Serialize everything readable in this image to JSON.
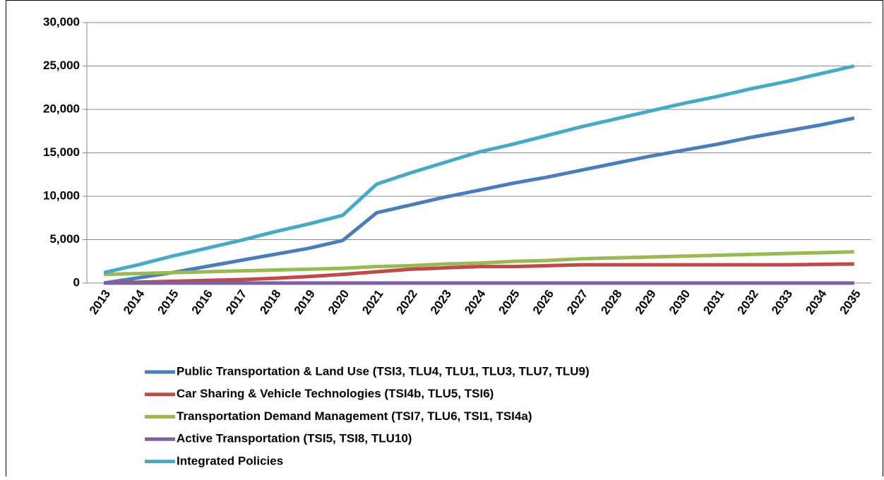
{
  "chart_data": {
    "type": "line",
    "categories": [
      "2013",
      "2014",
      "2015",
      "2016",
      "2017",
      "2018",
      "2019",
      "2020",
      "2021",
      "2022",
      "2023",
      "2024",
      "2025",
      "2026",
      "2027",
      "2028",
      "2029",
      "2030",
      "2031",
      "2032",
      "2033",
      "2034",
      "2035"
    ],
    "series": [
      {
        "name": "Public Transportation & Land Use (TSI3, TLU4, TLU1, TLU3, TLU7, TLU9)",
        "color": "#4a7ebb",
        "values": [
          0,
          600,
          1200,
          1900,
          2600,
          3300,
          4000,
          4900,
          8100,
          9000,
          9900,
          10700,
          11500,
          12200,
          13000,
          13800,
          14600,
          15300,
          16000,
          16800,
          17500,
          18200,
          19000
        ]
      },
      {
        "name": "Car Sharing & Vehicle Technologies (TSI4b, TLU5, TSI6)",
        "color": "#be4b48",
        "values": [
          0,
          100,
          200,
          300,
          400,
          550,
          750,
          1000,
          1300,
          1600,
          1750,
          1900,
          1900,
          2000,
          2100,
          2100,
          2100,
          2100,
          2100,
          2100,
          2100,
          2150,
          2200
        ]
      },
      {
        "name": "Transportation Demand Management (TSI7, TLU6, TSI1, TSI4a)",
        "color": "#98b954",
        "values": [
          1000,
          1100,
          1200,
          1300,
          1400,
          1500,
          1600,
          1700,
          1900,
          2000,
          2200,
          2300,
          2500,
          2600,
          2800,
          2900,
          3000,
          3100,
          3200,
          3300,
          3400,
          3500,
          3600
        ]
      },
      {
        "name": "Active Transportation (TSI5, TSI8, TLU10)",
        "color": "#7d60a0",
        "values": [
          0,
          0,
          0,
          0,
          0,
          0,
          0,
          0,
          0,
          0,
          0,
          0,
          0,
          0,
          0,
          0,
          0,
          0,
          0,
          0,
          0,
          0,
          0
        ]
      },
      {
        "name": "Integrated Policies",
        "color": "#46aac5",
        "values": [
          1200,
          2100,
          3100,
          4000,
          4900,
          5900,
          6800,
          7800,
          11400,
          12700,
          13900,
          15100,
          16000,
          17000,
          18000,
          18900,
          19800,
          20700,
          21500,
          22400,
          23200,
          24100,
          25000
        ]
      }
    ],
    "ylim": [
      0,
      30000
    ],
    "yticks": [
      0,
      {
        "value": 5000,
        "label": "5,000"
      },
      {
        "value": 10000,
        "label": "10,000"
      },
      {
        "value": 15000,
        "label": "15,000"
      },
      {
        "value": 20000,
        "label": "20,000"
      },
      {
        "value": 25000,
        "label": "25,000"
      },
      {
        "value": 30000,
        "label": "30,000"
      }
    ],
    "grid": true,
    "legend": "bottom"
  }
}
